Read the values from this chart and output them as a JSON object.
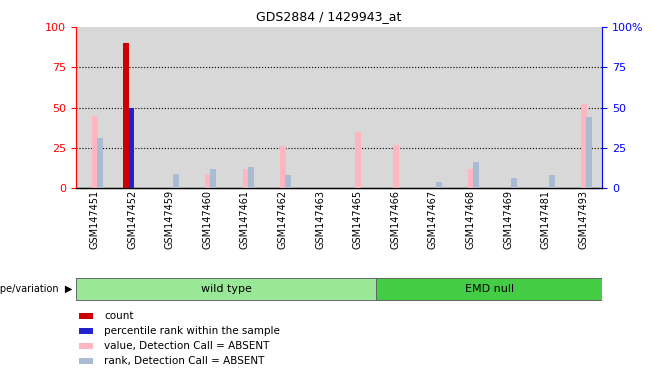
{
  "title": "GDS2884 / 1429943_at",
  "samples": [
    "GSM147451",
    "GSM147452",
    "GSM147459",
    "GSM147460",
    "GSM147461",
    "GSM147462",
    "GSM147463",
    "GSM147465",
    "GSM147466",
    "GSM147467",
    "GSM147468",
    "GSM147469",
    "GSM147481",
    "GSM147493"
  ],
  "count": [
    0,
    90,
    0,
    0,
    0,
    0,
    0,
    0,
    0,
    0,
    0,
    0,
    0,
    0
  ],
  "percentile_rank": [
    0,
    50,
    0,
    0,
    0,
    0,
    0,
    0,
    0,
    0,
    0,
    0,
    0,
    0
  ],
  "value_absent": [
    45,
    0,
    0,
    9,
    12,
    26,
    0,
    35,
    27,
    0,
    12,
    0,
    0,
    52
  ],
  "rank_absent": [
    31,
    0,
    9,
    12,
    13,
    8,
    0,
    0,
    0,
    4,
    16,
    6,
    8,
    44
  ],
  "wt_group": {
    "label": "wild type",
    "start": 0,
    "end": 8,
    "color": "#98e898"
  },
  "emd_group": {
    "label": "EMD null",
    "start": 8,
    "end": 14,
    "color": "#44cc44"
  },
  "ylim": [
    0,
    100
  ],
  "yticks": [
    0,
    25,
    50,
    75,
    100
  ],
  "count_color": "#cc0000",
  "rank_color": "#2222cc",
  "value_absent_color": "#ffb6c1",
  "rank_absent_color": "#aabbd4",
  "bar_width": 0.2,
  "col_bg_color": "#d8d8d8",
  "right_ytick_labels": [
    "0",
    "25",
    "50",
    "75",
    "100%"
  ]
}
